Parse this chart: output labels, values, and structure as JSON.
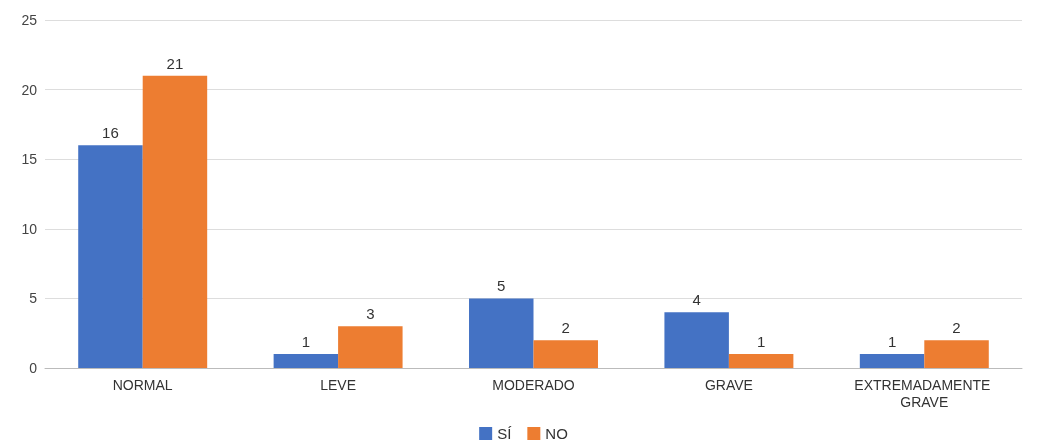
{
  "chart_data": {
    "type": "bar",
    "categories": [
      "NORMAL",
      "LEVE",
      "MODERADO",
      "GRAVE",
      "EXTREMADAMENTE GRAVE"
    ],
    "series": [
      {
        "name": "SÍ",
        "color": "#4472c4",
        "values": [
          16,
          1,
          5,
          4,
          1
        ]
      },
      {
        "name": "NO",
        "color": "#ed7d31",
        "values": [
          21,
          3,
          2,
          1,
          2
        ]
      }
    ],
    "ylim": [
      0,
      25
    ],
    "yticks": [
      0,
      5,
      10,
      15,
      20,
      25
    ],
    "grid": "y",
    "legend": "bottom",
    "data_labels": true
  }
}
